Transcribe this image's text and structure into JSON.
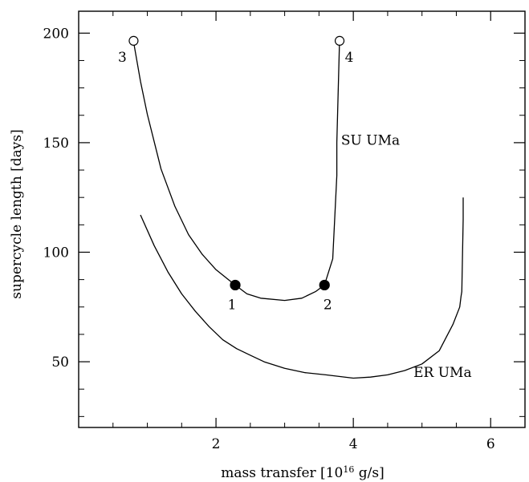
{
  "chart_data": {
    "type": "line",
    "xlabel": "mass transfer [10",
    "xlabel_sup": "16",
    "xlabel_unit": " g/s]",
    "ylabel": "supercycle length [days]",
    "xlim": [
      0.0,
      6.5
    ],
    "ylim": [
      20,
      210
    ],
    "x_major_ticks": [
      2,
      4,
      6
    ],
    "x_minor_ticks": [
      0.5,
      1,
      1.5,
      2.5,
      3,
      3.5,
      4.5,
      5,
      5.5,
      6.5
    ],
    "y_major_ticks": [
      50,
      100,
      150,
      200
    ],
    "y_minor_ticks": [
      25,
      75,
      125,
      175
    ],
    "grid": false,
    "series": [
      {
        "name": "SU UMa",
        "x": [
          0.8,
          0.9,
          1.0,
          1.2,
          1.4,
          1.6,
          1.8,
          2.0,
          2.2,
          2.28,
          2.45,
          2.65,
          3.0,
          3.25,
          3.45,
          3.58,
          3.7,
          3.76,
          3.76,
          3.8
        ],
        "y": [
          196,
          178,
          163,
          138,
          121,
          108,
          99,
          92,
          87,
          85,
          81,
          79,
          78,
          79,
          82,
          85,
          97,
          135,
          150,
          197
        ]
      },
      {
        "name": "ER UMa",
        "x": [
          0.9,
          1.1,
          1.3,
          1.5,
          1.7,
          1.9,
          2.1,
          2.3,
          2.5,
          2.7,
          3.0,
          3.3,
          3.6,
          4.0,
          4.25,
          4.5,
          4.75,
          5.0,
          5.25,
          5.45,
          5.55,
          5.57,
          5.58,
          5.6,
          5.6
        ],
        "y": [
          117,
          103,
          91,
          81,
          73,
          66,
          60,
          56,
          53,
          50,
          47,
          45,
          44,
          42.5,
          43,
          44,
          46,
          49,
          55,
          67,
          75,
          80,
          82,
          115,
          125
        ]
      }
    ],
    "markers": [
      {
        "label": "1",
        "x": 2.28,
        "y": 85,
        "filled": true
      },
      {
        "label": "2",
        "x": 3.58,
        "y": 85,
        "filled": true
      },
      {
        "label": "3",
        "x": 0.8,
        "y": 196.5,
        "filled": false
      },
      {
        "label": "4",
        "x": 3.8,
        "y": 196.5,
        "filled": false
      }
    ],
    "annotations": [
      {
        "text": "SU UMa",
        "x": 4.25,
        "y": 149
      },
      {
        "text": "ER UMa",
        "x": 5.3,
        "y": 43
      }
    ]
  }
}
